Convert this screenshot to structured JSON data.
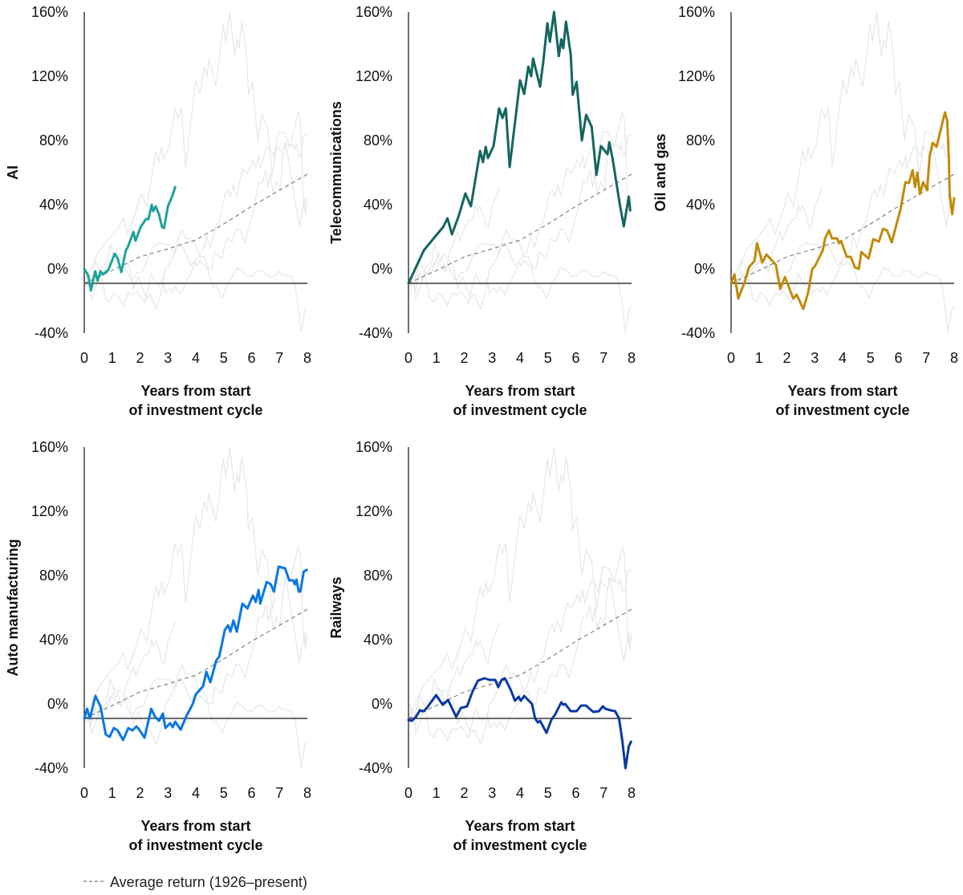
{
  "chart_data": {
    "type": "line",
    "layout": "small-multiples",
    "ylim": [
      -40,
      160
    ],
    "xlim": [
      0,
      8
    ],
    "y_ticks": [
      160,
      120,
      80,
      40,
      0,
      -40
    ],
    "y_tick_labels": [
      "160%",
      "120%",
      "80%",
      "40%",
      "0%",
      "-40%"
    ],
    "x_ticks": [
      0,
      1,
      2,
      3,
      4,
      5,
      6,
      7,
      8
    ],
    "x_tick_labels": [
      "0",
      "1",
      "2",
      "3",
      "4",
      "5",
      "6",
      "7",
      "8"
    ],
    "xlabel_line1": "Years from start",
    "xlabel_line2": "of investment cycle",
    "reference_line_value": -9,
    "grid": false,
    "context_line_color": "#e8e8e8",
    "average": {
      "label": "Average return (1926–present)",
      "color": "#777777",
      "style": "dashed",
      "x": [
        0,
        1,
        2,
        3,
        4,
        5,
        6,
        7,
        8
      ],
      "y": [
        -9,
        -1,
        7.5,
        12.5,
        18,
        28,
        39,
        49,
        59
      ]
    },
    "panels": [
      {
        "ylabel": "AI",
        "color": "#1fa39a",
        "x": [
          0,
          0.14,
          0.24,
          0.39,
          0.48,
          0.58,
          0.67,
          0.87,
          1.09,
          1.2,
          1.33,
          1.49,
          1.56,
          1.76,
          1.84,
          2.02,
          2.21,
          2.3,
          2.42,
          2.47,
          2.56,
          2.68,
          2.79,
          2.86,
          3.0,
          3.17,
          3.26
        ],
        "y": [
          0,
          -4,
          -13.5,
          -1.5,
          -7.5,
          -1.5,
          -3.5,
          -0.5,
          9.5,
          6.5,
          -2,
          11.5,
          13.5,
          23,
          17.5,
          26,
          31,
          31,
          40,
          36,
          39,
          34,
          26,
          25.5,
          39,
          46,
          51
        ]
      },
      {
        "ylabel": "Telecommunications",
        "color": "#14665f",
        "x": [
          0,
          0.55,
          0.9,
          1.24,
          1.4,
          1.56,
          1.81,
          2.04,
          2.24,
          2.57,
          2.67,
          2.77,
          2.85,
          3.05,
          3.25,
          3.37,
          3.49,
          3.63,
          4.0,
          4.15,
          4.3,
          4.4,
          4.47,
          4.72,
          4.84,
          4.98,
          5.07,
          5.22,
          5.39,
          5.48,
          5.55,
          5.65,
          5.82,
          5.89,
          6.03,
          6.22,
          6.37,
          6.57,
          6.74,
          6.9,
          7.14,
          7.2,
          7.32,
          7.57,
          7.72,
          7.9,
          7.95
        ],
        "y": [
          -9,
          11.5,
          19,
          26,
          31.5,
          21.5,
          33.5,
          47,
          39,
          73.5,
          66.5,
          76,
          69,
          76.5,
          100,
          94,
          100,
          63.5,
          117.5,
          109,
          126,
          120,
          131,
          113.5,
          130,
          153,
          141.5,
          160,
          132.5,
          143,
          137.5,
          154,
          133.5,
          108.5,
          116.5,
          80,
          96,
          88.5,
          58.5,
          76.5,
          71.5,
          79,
          68.5,
          41,
          26.5,
          45,
          36.5
        ]
      },
      {
        "ylabel": "Oil and gas",
        "color": "#c28a0a",
        "x": [
          0,
          0.12,
          0.26,
          0.5,
          0.64,
          0.84,
          0.93,
          1.12,
          1.27,
          1.61,
          1.76,
          1.93,
          2.23,
          2.35,
          2.59,
          2.76,
          2.91,
          3.0,
          3.29,
          3.37,
          3.51,
          3.62,
          3.8,
          3.87,
          3.95,
          4.15,
          4.29,
          4.44,
          4.58,
          4.67,
          4.93,
          5.1,
          5.3,
          5.45,
          5.59,
          5.76,
          6.08,
          6.25,
          6.38,
          6.51,
          6.6,
          6.68,
          6.77,
          6.89,
          7.03,
          7.12,
          7.23,
          7.37,
          7.46,
          7.67,
          7.75,
          7.81,
          7.84,
          7.93,
          8.0
        ],
        "y": [
          -9,
          -3.5,
          -18.5,
          -7.5,
          1,
          5,
          16,
          4,
          9,
          2.5,
          -12.5,
          -5,
          -18.5,
          -16,
          -25,
          -15,
          0,
          1.5,
          11.5,
          19,
          24,
          19,
          19,
          16,
          17,
          7.5,
          7.5,
          1,
          0,
          10.5,
          6.5,
          18.5,
          17,
          25,
          24,
          16.5,
          37.5,
          54,
          53.5,
          61.5,
          51,
          60,
          46.5,
          54,
          49,
          70,
          78.5,
          76,
          82.5,
          97.5,
          92.5,
          69,
          46,
          34,
          44
        ]
      },
      {
        "ylabel": "Auto manufacturing",
        "color": "#0a77e0",
        "x": [
          0,
          0.1,
          0.2,
          0.4,
          0.58,
          0.77,
          0.91,
          1.06,
          1.2,
          1.39,
          1.58,
          1.73,
          1.87,
          1.95,
          2.16,
          2.4,
          2.54,
          2.68,
          2.82,
          2.91,
          3.08,
          3.17,
          3.26,
          3.46,
          3.65,
          3.89,
          4.0,
          4.26,
          4.38,
          4.52,
          4.73,
          4.84,
          5.04,
          5.16,
          5.24,
          5.35,
          5.47,
          5.67,
          5.85,
          6.05,
          6.15,
          6.25,
          6.31,
          6.54,
          6.69,
          6.8,
          6.97,
          7.2,
          7.35,
          7.49,
          7.55,
          7.61,
          7.69,
          7.75,
          7.87,
          7.98
        ],
        "y": [
          -9,
          -3,
          -9,
          5,
          -1.5,
          -19,
          -20.5,
          -15,
          -16.5,
          -22.5,
          -15,
          -16.5,
          -14,
          -15.5,
          -21,
          -3,
          -8,
          -10.5,
          -6,
          -15,
          -12,
          -14.5,
          -11,
          -16,
          -8,
          0,
          6,
          11,
          20,
          13.5,
          27,
          29.5,
          46,
          49,
          45,
          52,
          45,
          62.5,
          59.5,
          67.5,
          63.5,
          71,
          62.5,
          76,
          74.5,
          70,
          85.5,
          84.5,
          77,
          77,
          74.5,
          77.5,
          70,
          70,
          82.5,
          83.5
        ]
      },
      {
        "ylabel": "Railways",
        "color": "#0a3aa0",
        "x": [
          0,
          0.12,
          0.27,
          0.41,
          0.56,
          0.7,
          0.99,
          1.23,
          1.42,
          1.71,
          1.88,
          2.1,
          2.29,
          2.49,
          2.72,
          2.91,
          3.11,
          3.22,
          3.34,
          3.46,
          3.66,
          3.82,
          3.95,
          4.03,
          4.15,
          4.43,
          4.54,
          4.64,
          4.72,
          4.95,
          5.12,
          5.26,
          5.48,
          5.55,
          5.62,
          5.82,
          6.03,
          6.19,
          6.37,
          6.46,
          6.63,
          6.83,
          6.97,
          7.06,
          7.26,
          7.41,
          7.55,
          7.67,
          7.78,
          7.9,
          7.98
        ],
        "y": [
          -10,
          -10.5,
          -8,
          -4,
          -4.5,
          -1.5,
          5.5,
          -0.5,
          2.5,
          -8,
          -2.5,
          -1.5,
          7.5,
          14.5,
          16,
          15,
          15,
          10.5,
          15,
          16,
          9,
          2,
          4.5,
          2,
          5,
          0,
          -9,
          -11.5,
          -10.5,
          -18,
          -10,
          -6.5,
          1,
          -0.5,
          0,
          -4.5,
          -4.5,
          -1,
          -1,
          -2.5,
          -5,
          -4.5,
          -1.5,
          -3,
          -4,
          -4.5,
          -9,
          -23,
          -40,
          -26.5,
          -23.5
        ]
      }
    ]
  }
}
